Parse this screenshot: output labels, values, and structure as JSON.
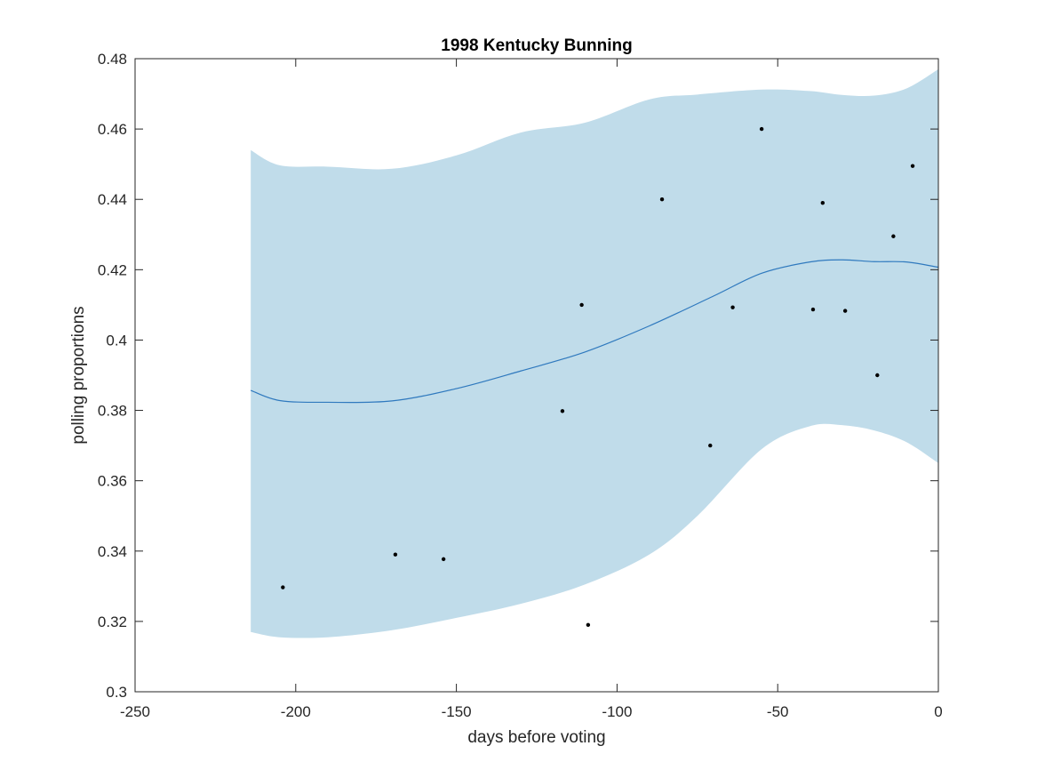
{
  "chart_data": {
    "type": "line",
    "title": "1998 Kentucky Bunning",
    "xlabel": "days before voting",
    "ylabel": "polling proportions",
    "xlim": [
      -250,
      0
    ],
    "ylim": [
      0.3,
      0.48
    ],
    "xticks": [
      -250,
      -200,
      -150,
      -100,
      -50,
      0
    ],
    "yticks": [
      0.3,
      0.32,
      0.34,
      0.36,
      0.38,
      0.4,
      0.42,
      0.44,
      0.46,
      0.48
    ],
    "grid": false,
    "legend": "none",
    "colors": {
      "band": "#c0dcea",
      "line": "#2f79be",
      "points": "#000000",
      "axes": "#262626"
    },
    "series": [
      {
        "kind": "band",
        "x": [
          -214,
          -205,
          -190,
          -170,
          -150,
          -130,
          -110,
          -90,
          -75,
          -55,
          -40,
          -30,
          -20,
          -10,
          0
        ],
        "lower": [
          0.317,
          0.3155,
          0.3155,
          0.3175,
          0.321,
          0.325,
          0.3305,
          0.339,
          0.35,
          0.369,
          0.3755,
          0.3758,
          0.3743,
          0.371,
          0.365
        ],
        "upper": [
          0.454,
          0.4497,
          0.4493,
          0.4487,
          0.4525,
          0.459,
          0.4618,
          0.4684,
          0.4698,
          0.4712,
          0.4708,
          0.4697,
          0.4695,
          0.4715,
          0.477
        ]
      },
      {
        "kind": "line",
        "x": [
          -214,
          -205,
          -190,
          -170,
          -150,
          -130,
          -110,
          -90,
          -70,
          -55,
          -40,
          -30,
          -20,
          -10,
          0
        ],
        "y": [
          0.3857,
          0.3828,
          0.3823,
          0.3827,
          0.3862,
          0.3912,
          0.3966,
          0.404,
          0.4125,
          0.419,
          0.4222,
          0.4228,
          0.4223,
          0.4222,
          0.4207
        ]
      },
      {
        "kind": "scatter",
        "x": [
          -204,
          -169,
          -154,
          -117,
          -111,
          -109,
          -86,
          -71,
          -64,
          -55,
          -39,
          -36,
          -29,
          -19,
          -14,
          -8
        ],
        "y": [
          0.3297,
          0.339,
          0.3377,
          0.3798,
          0.41,
          0.319,
          0.44,
          0.37,
          0.4093,
          0.46,
          0.4087,
          0.439,
          0.4083,
          0.39,
          0.4295,
          0.4495
        ]
      }
    ]
  }
}
